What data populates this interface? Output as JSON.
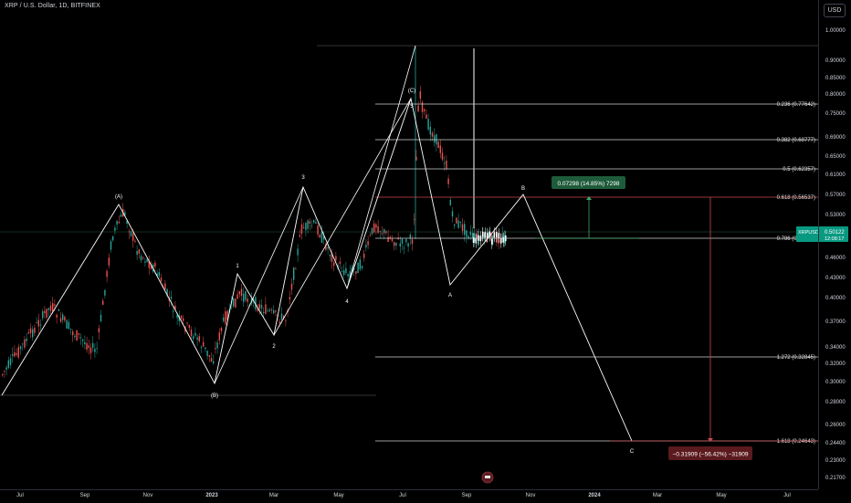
{
  "header": {
    "symbol_title": "XRP / U.S. Dollar, 1D, BITFINEX",
    "currency_label": "USD"
  },
  "price_axis": {
    "labels": [
      "1.00000",
      "0.90000",
      "0.85000",
      "0.80000",
      "0.75000",
      "0.69000",
      "0.65000",
      "0.61000",
      "0.57000",
      "0.53000",
      "0.50000",
      "0.46000",
      "0.43000",
      "0.40000",
      "0.37000",
      "0.34000",
      "0.32000",
      "0.30000",
      "0.28000",
      "0.26000",
      "0.24400",
      "0.23000",
      "0.21700"
    ],
    "last_price": "0.50122",
    "symbol_tag": "XRPUSD",
    "countdown": "12:08:17"
  },
  "time_axis": {
    "labels": [
      "Jul",
      "Sep",
      "Nov",
      "2023",
      "Mar",
      "May",
      "Jul",
      "Sep",
      "Nov",
      "2024",
      "Mar",
      "May",
      "Jul"
    ]
  },
  "fib_levels": [
    {
      "label": "0.236 (0.77642)"
    },
    {
      "label": "0.382 (0.68777)"
    },
    {
      "label": "0.5 (0.62357)"
    },
    {
      "label": "0.618 (0.56537)"
    },
    {
      "label": "0.786 (0.49175)"
    },
    {
      "label": "1.272 (0.32845)"
    },
    {
      "label": "1.618 (0.24643)"
    }
  ],
  "wave_labels": [
    "(A)",
    "(B)",
    "1",
    "2",
    "3",
    "4",
    "(C)",
    "5",
    "A",
    "B",
    "C"
  ],
  "measurements": {
    "up": "0.07298 (14.85%) 7298",
    "down": "−0.31909 (−56.42%) −31909"
  },
  "colors": {
    "background": "#000000",
    "bull": "#26a69a",
    "bear": "#ef5350",
    "line": "#ffffff",
    "up_box": "#1e5b3a",
    "down_box": "#5b1a1e",
    "price_tag": "#089981"
  }
}
